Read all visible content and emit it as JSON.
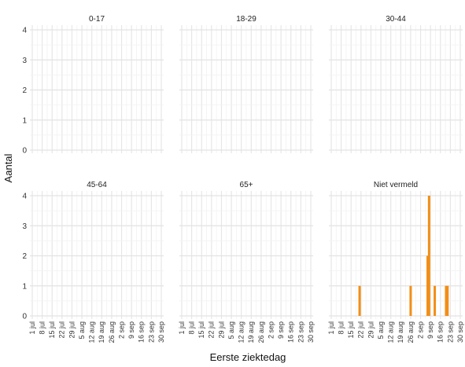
{
  "chart_data": {
    "type": "bar",
    "facet_layout": "2 rows x 3 columns",
    "xlabel": "Eerste ziektedag",
    "ylabel": "Aantal",
    "ylim": [
      0,
      4
    ],
    "yticks": [
      0,
      1,
      2,
      3,
      4
    ],
    "x_tick_labels": [
      "1 jul",
      "8 jul",
      "15 jul",
      "22 jul",
      "29 jul",
      "5 aug",
      "12 aug",
      "19 aug",
      "26 aug",
      "2 sep",
      "9 sep",
      "16 sep",
      "23 sep",
      "30 sep"
    ],
    "x_range_days": [
      0,
      91
    ],
    "grid": true,
    "bar_color": "#f28e16",
    "panels": [
      {
        "label": "0-17",
        "bars": []
      },
      {
        "label": "18-29",
        "bars": []
      },
      {
        "label": "30-44",
        "bars": []
      },
      {
        "label": "45-64",
        "bars": []
      },
      {
        "label": "65+",
        "bars": []
      },
      {
        "label": "Niet vermeld",
        "bars": [
          {
            "date": "21 jul",
            "value": 1
          },
          {
            "date": "26 aug",
            "value": 1
          },
          {
            "date": "7 sep",
            "value": 2
          },
          {
            "date": "8 sep",
            "value": 4
          },
          {
            "date": "12 sep",
            "value": 1
          },
          {
            "date": "20 sep",
            "value": 1
          },
          {
            "date": "21 sep",
            "value": 1
          }
        ]
      }
    ]
  }
}
